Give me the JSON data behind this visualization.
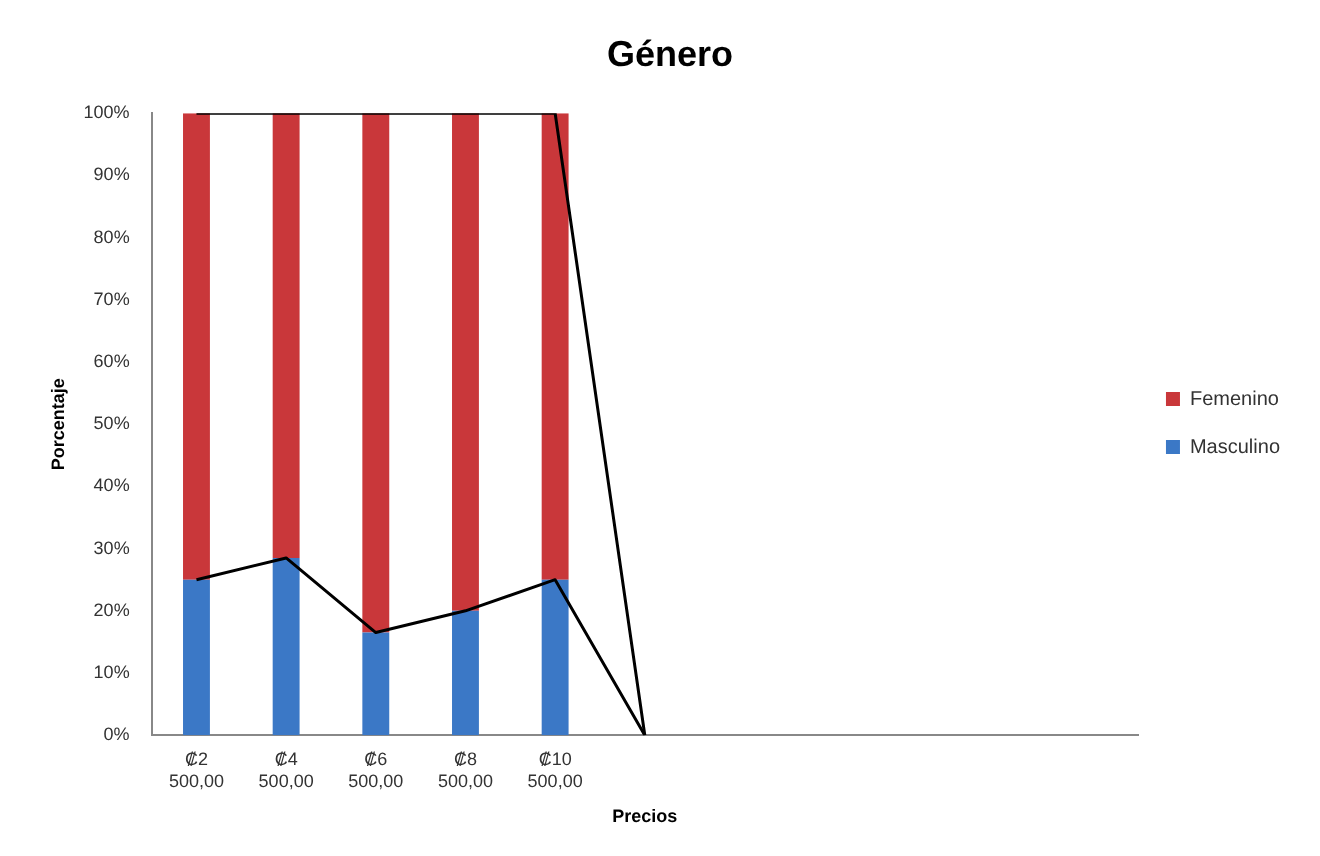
{
  "chart_data": {
    "type": "bar",
    "title": "Género",
    "xlabel": "Precios",
    "ylabel": "Porcentaje",
    "categories": [
      "₡2 500,00",
      "₡4 500,00",
      "₡6 500,00",
      "₡8 500,00",
      "₡10 500,00",
      null,
      null,
      null,
      null,
      null,
      null
    ],
    "stacked": true,
    "series": [
      {
        "name": "Masculino",
        "color": "#3b78c6",
        "values": [
          25,
          28.5,
          16.5,
          20,
          25,
          null,
          null,
          null,
          null,
          null,
          null
        ]
      },
      {
        "name": "Femenino",
        "color": "#c9373a",
        "values": [
          75,
          71.5,
          83.5,
          80,
          75,
          null,
          null,
          null,
          null,
          null,
          null
        ]
      },
      {
        "type": "line",
        "color": "#000000",
        "values": [
          100,
          100,
          100,
          100,
          100,
          0,
          null,
          null,
          null,
          null,
          null
        ]
      },
      {
        "type": "line",
        "color": "#000000",
        "values": [
          25,
          28.5,
          16.5,
          20,
          25,
          0,
          null,
          null,
          null,
          null,
          null
        ]
      }
    ],
    "ylim": [
      0,
      100
    ],
    "yticks": [
      {
        "value": 0,
        "label": "0%"
      },
      {
        "value": 10,
        "label": "10%"
      },
      {
        "value": 20,
        "label": "20%"
      },
      {
        "value": 30,
        "label": "30%"
      },
      {
        "value": 40,
        "label": "40%"
      },
      {
        "value": 50,
        "label": "50%"
      },
      {
        "value": 60,
        "label": "60%"
      },
      {
        "value": 70,
        "label": "70%"
      },
      {
        "value": 80,
        "label": "80%"
      },
      {
        "value": 90,
        "label": "90%"
      },
      {
        "value": 100,
        "label": "100%"
      }
    ],
    "grid": false,
    "legend": "right",
    "marker": "none"
  }
}
